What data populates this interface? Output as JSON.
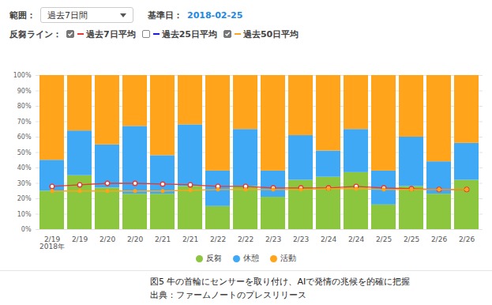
{
  "chart_data": {
    "type": "bar",
    "stacked": true,
    "grid": true,
    "legend": "bottom",
    "categories": [
      "2/19\n2018年",
      "2/19",
      "2/20",
      "2/20",
      "2/21",
      "2/21",
      "2/22",
      "2/22",
      "2/23",
      "2/23",
      "2/24",
      "2/24",
      "2/25",
      "2/25",
      "2/26",
      "2/26"
    ],
    "series": [
      {
        "name": "反芻",
        "type": "bar",
        "color": "#8cc63f",
        "values": [
          25,
          35,
          27,
          23,
          23,
          28,
          15,
          28,
          21,
          32,
          34,
          37,
          16,
          28,
          23,
          32
        ]
      },
      {
        "name": "休憩",
        "type": "bar",
        "color": "#3fa9f5",
        "values": [
          20,
          29,
          28,
          44,
          25,
          40,
          23,
          37,
          17,
          29,
          17,
          28,
          22,
          32,
          21,
          24
        ]
      },
      {
        "name": "活動",
        "type": "bar",
        "color": "#ffa41b",
        "values": [
          55,
          36,
          45,
          33,
          52,
          32,
          62,
          35,
          62,
          39,
          49,
          35,
          62,
          40,
          56,
          44
        ]
      },
      {
        "name": "過去7日平均",
        "type": "line",
        "color": "#e53935",
        "marker": "circle_open",
        "values": [
          28,
          29,
          30,
          30,
          29.5,
          29,
          28,
          28,
          27,
          27,
          27,
          28,
          27,
          26.5,
          26,
          26
        ]
      },
      {
        "name": "過去25日平均",
        "type": "line",
        "color": "#1a1adb",
        "marker": "circle",
        "values": [
          null,
          null,
          null,
          null,
          null,
          null,
          null,
          null,
          null,
          null,
          null,
          null,
          null,
          null,
          null,
          null
        ]
      },
      {
        "name": "過去50日平均",
        "type": "line",
        "color": "#ffa41b",
        "marker": "circle",
        "values": [
          25,
          25,
          25,
          25,
          25,
          25.5,
          26,
          26,
          26,
          26,
          26.5,
          26.5,
          26,
          26,
          26,
          26
        ]
      }
    ],
    "ylim": [
      0,
      100
    ],
    "yticks": [
      {
        "value": 0,
        "label": "0%"
      },
      {
        "value": 10,
        "label": "10%"
      },
      {
        "value": 20,
        "label": "20%"
      },
      {
        "value": 30,
        "label": "30%"
      },
      {
        "value": 40,
        "label": "40%"
      },
      {
        "value": 50,
        "label": "50%"
      },
      {
        "value": 60,
        "label": "60%"
      },
      {
        "value": 70,
        "label": "70%"
      },
      {
        "value": 80,
        "label": "80%"
      },
      {
        "value": 90,
        "label": "90%"
      },
      {
        "value": 100,
        "label": "100%"
      }
    ]
  },
  "header": {
    "range_label": "範囲：",
    "range_value": "過去7日間",
    "date_label": "基準日：",
    "date_value": "2018-02-25",
    "line_label": "反芻ライン："
  },
  "caption": [
    "図5 牛の首輪にセンサーを取り付け、AIで発情の兆候を的確に把握",
    "出典：ファームノートのプレスリリース"
  ]
}
